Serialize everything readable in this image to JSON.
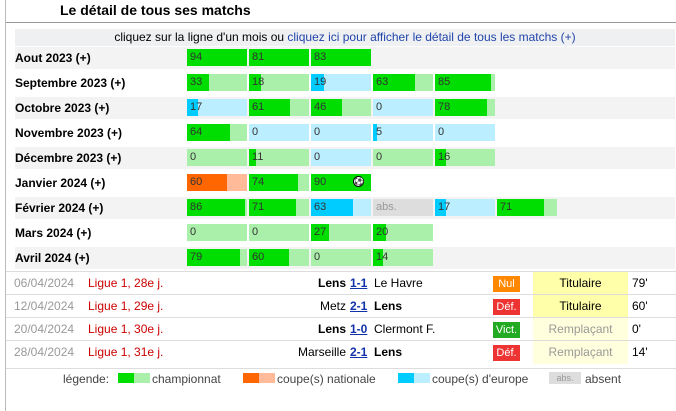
{
  "title": "Le détail de tous ses matchs",
  "intro": {
    "text": "cliquez sur la ligne d'un mois ou",
    "link": "cliquez ici pour afficher le détail de tous les matchs (+)"
  },
  "colors": {
    "championnat_dark": "#00dd00",
    "championnat_light": "#aaf0aa",
    "nationale_dark": "#ff6600",
    "nationale_light": "#ffbb99",
    "europe_dark": "#00ccff",
    "europe_light": "#bbeeff",
    "absent": "#dddddd"
  },
  "months": [
    {
      "label": "Aout 2023 (+)",
      "games": [
        {
          "num": "94",
          "type": "ch",
          "dark": 1.0
        },
        {
          "num": "81",
          "type": "ch",
          "dark": 1.0
        },
        {
          "num": "83",
          "type": "ch",
          "dark": 1.0
        }
      ]
    },
    {
      "label": "Septembre 2023 (+)",
      "games": [
        {
          "num": "33",
          "type": "ch",
          "dark": 0.37
        },
        {
          "num": "18",
          "type": "ch",
          "dark": 0.2
        },
        {
          "num": "19",
          "type": "eu",
          "dark": 0.21
        },
        {
          "num": "63",
          "type": "ch",
          "dark": 0.7
        },
        {
          "num": "85",
          "type": "ch",
          "dark": 0.94
        }
      ]
    },
    {
      "label": "Octobre 2023 (+)",
      "games": [
        {
          "num": "17",
          "type": "eu",
          "dark": 0.19
        },
        {
          "num": "61",
          "type": "ch",
          "dark": 0.68
        },
        {
          "num": "46",
          "type": "ch",
          "dark": 0.51
        },
        {
          "num": "0",
          "type": "eu",
          "dark": 0.0
        },
        {
          "num": "78",
          "type": "ch",
          "dark": 0.87
        }
      ]
    },
    {
      "label": "Novembre 2023 (+)",
      "games": [
        {
          "num": "64",
          "type": "ch",
          "dark": 0.71
        },
        {
          "num": "0",
          "type": "eu",
          "dark": 0.0
        },
        {
          "num": "0",
          "type": "eu",
          "dark": 0.0
        },
        {
          "num": "5",
          "type": "eu",
          "dark": 0.06
        },
        {
          "num": "0",
          "type": "eu",
          "dark": 0.0
        }
      ]
    },
    {
      "label": "Décembre 2023 (+)",
      "games": [
        {
          "num": "0",
          "type": "ch",
          "dark": 0.0
        },
        {
          "num": "11",
          "type": "ch",
          "dark": 0.12
        },
        {
          "num": "0",
          "type": "eu",
          "dark": 0.0
        },
        {
          "num": "0",
          "type": "ch",
          "dark": 0.0
        },
        {
          "num": "16",
          "type": "ch",
          "dark": 0.18
        }
      ]
    },
    {
      "label": "Janvier 2024 (+)",
      "games": [
        {
          "num": "60",
          "type": "na",
          "dark": 0.67
        },
        {
          "num": "74",
          "type": "ch",
          "dark": 0.82
        },
        {
          "num": "90",
          "type": "ch",
          "dark": 1.0,
          "ball": "⚽"
        }
      ]
    },
    {
      "label": "Février 2024 (+)",
      "games": [
        {
          "num": "86",
          "type": "ch",
          "dark": 0.96
        },
        {
          "num": "71",
          "type": "ch",
          "dark": 0.79
        },
        {
          "num": "63",
          "type": "eu",
          "dark": 0.7
        },
        {
          "num": "abs.",
          "type": "abs",
          "dark": 0.0
        },
        {
          "num": "17",
          "type": "eu",
          "dark": 0.19
        },
        {
          "num": "71",
          "type": "ch",
          "dark": 0.79
        }
      ]
    },
    {
      "label": "Mars 2024 (+)",
      "games": [
        {
          "num": "0",
          "type": "ch",
          "dark": 0.0
        },
        {
          "num": "0",
          "type": "ch",
          "dark": 0.0
        },
        {
          "num": "27",
          "type": "ch",
          "dark": 0.3
        },
        {
          "num": "20",
          "type": "ch",
          "dark": 0.22
        }
      ]
    },
    {
      "label": "Avril 2024 (+)",
      "games": [
        {
          "num": "79",
          "type": "ch",
          "dark": 0.88
        },
        {
          "num": "60",
          "type": "ch",
          "dark": 0.67
        },
        {
          "num": "0",
          "type": "ch",
          "dark": 0.0
        },
        {
          "num": "14",
          "type": "ch",
          "dark": 0.16
        }
      ]
    }
  ],
  "matches": [
    {
      "date": "06/04/2024",
      "comp": "Ligue 1, 28e j.",
      "home": "Lens",
      "score": "1-1",
      "away": "Le Havre",
      "home_bold": true,
      "result": "Nul",
      "result_color": "#ff8800",
      "role": "Titulaire",
      "role_bg": "#ffffaa",
      "role_color": "#000000",
      "minutes": "79'"
    },
    {
      "date": "12/04/2024",
      "comp": "Ligue 1, 29e j.",
      "home": "Metz",
      "score": "2-1",
      "away": "Lens",
      "home_bold": false,
      "result": "Déf.",
      "result_color": "#ee3333",
      "role": "Titulaire",
      "role_bg": "#ffffaa",
      "role_color": "#000000",
      "minutes": "60'"
    },
    {
      "date": "20/04/2024",
      "comp": "Ligue 1, 30e j.",
      "home": "Lens",
      "score": "1-0",
      "away": "Clermont F.",
      "home_bold": true,
      "result": "Vict.",
      "result_color": "#22aa22",
      "role": "Remplaçant",
      "role_bg": "#ffffdd",
      "role_color": "#999999",
      "minutes": "0'"
    },
    {
      "date": "28/04/2024",
      "comp": "Ligue 1, 31e j.",
      "home": "Marseille",
      "score": "2-1",
      "away": "Lens",
      "home_bold": false,
      "result": "Déf.",
      "result_color": "#ee3333",
      "role": "Remplaçant",
      "role_bg": "#ffffdd",
      "role_color": "#999999",
      "minutes": "14'"
    }
  ],
  "legend": {
    "label": "légende:",
    "championnat": "championnat",
    "nationale": "coupe(s) nationale",
    "europe": "coupe(s) d'europe",
    "abs_swatch": "abs.",
    "absent": "absent"
  }
}
